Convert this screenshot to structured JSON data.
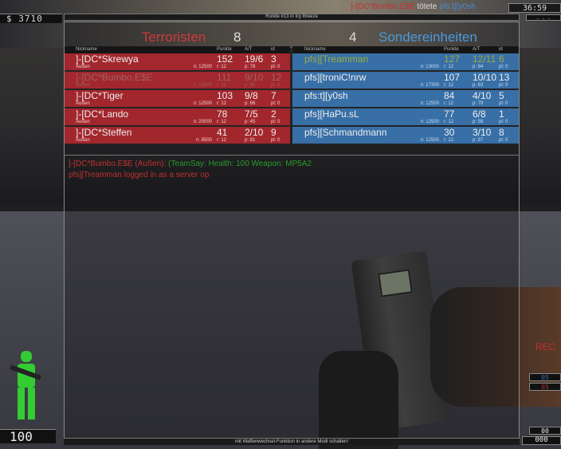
{
  "hud": {
    "money": "$ 3710",
    "timer": "36:59",
    "health": "100",
    "rec": "REC",
    "ammo_top": "00",
    "ammo_bottom": "000",
    "blue_count": "05",
    "red_count": "05"
  },
  "round_info": "Runde #13 in Icy Breeze",
  "footer_hint": "mit Waffenwechsel-Funktion in andere Modi schalten!",
  "chat": [
    {
      "text": "]-[DC*Bumbo.E$E (Außen):",
      "color": "#c03030"
    },
    {
      "text": "(TeamSay: Health: 100 Weapon: MP5A2",
      "color": "#2a7a2a"
    },
    {
      "text": "pfs][Treamman logged in as a server op",
      "color": "#c03030"
    }
  ],
  "killfeed": {
    "killer": "]-[DC*Bumbo.E$E",
    "verb": "tötete",
    "victim": "pfs:t][y0sh"
  },
  "columns": {
    "nickname": "Nickname",
    "points": "Punkte",
    "at": "A/T",
    "id": "id"
  },
  "terrorists": {
    "name": "Terroristen",
    "score": "8",
    "color": "#d03a3a",
    "players": [
      {
        "name": "]-[DC*Skrewya",
        "loc": "Außen",
        "money": "n: 12500",
        "points": "152",
        "at": "19/6",
        "id": "3",
        "r": "r: 12",
        "p": "p: 78",
        "pl": "pl: 0"
      },
      {
        "name": "]-[DC*Bumbo.E$E",
        "loc": "Außen",
        "money": "n: 12500",
        "points": "111",
        "at": "9/10",
        "id": "12",
        "r": "r: 12",
        "p": "p: 50",
        "pl": "pl: 0",
        "dead": true
      },
      {
        "name": "]-[DC*Tiger",
        "loc": "Außen",
        "money": "n: 12500",
        "points": "103",
        "at": "9/8",
        "id": "7",
        "r": "r: 12",
        "p": "p: 66",
        "pl": "pl: 0"
      },
      {
        "name": "]-[DC*Lando",
        "loc": "Außen",
        "money": "n: 20000",
        "points": "78",
        "at": "7/5",
        "id": "2",
        "r": "r: 12",
        "p": "p: 45",
        "pl": "pl: 0"
      },
      {
        "name": "]-[DC*Steffen",
        "loc": "Außen",
        "money": "n: 8500",
        "points": "41",
        "at": "2/10",
        "id": "9",
        "r": "r: 12",
        "p": "p: 81",
        "pl": "pl: 0"
      }
    ]
  },
  "counter_terrorists": {
    "name": "Sondereinheiten",
    "score": "4",
    "color": "#4a9ade",
    "players": [
      {
        "name": "pfs][Treamman",
        "loc": "",
        "money": "n: 13000",
        "points": "127",
        "at": "12/11",
        "id": "6",
        "r": "r: 12",
        "p": "p: 84",
        "pl": "pl: 0",
        "self": true
      },
      {
        "name": "pfs][troniC!nrw",
        "loc": "",
        "money": "n: 17300",
        "points": "107",
        "at": "10/10",
        "id": "13",
        "r": "r: 12",
        "p": "p: 63",
        "pl": "pl: 0"
      },
      {
        "name": "pfs:t][y0sh",
        "loc": "",
        "money": "n: 12500",
        "points": "84",
        "at": "4/10",
        "id": "5",
        "r": "r: 12",
        "p": "p: 79",
        "pl": "pl: 0"
      },
      {
        "name": "pfs][HaPu.sL",
        "loc": "",
        "money": "n: 12500",
        "points": "77",
        "at": "6/8",
        "id": "1",
        "r": "r: 12",
        "p": "p: 58",
        "pl": "pl: 0"
      },
      {
        "name": "pfs][Schmandmann",
        "loc": "",
        "money": "n: 12500",
        "points": "30",
        "at": "3/10",
        "id": "8",
        "r": "r: 12",
        "p": "p: 97",
        "pl": "pl: 0"
      }
    ]
  }
}
